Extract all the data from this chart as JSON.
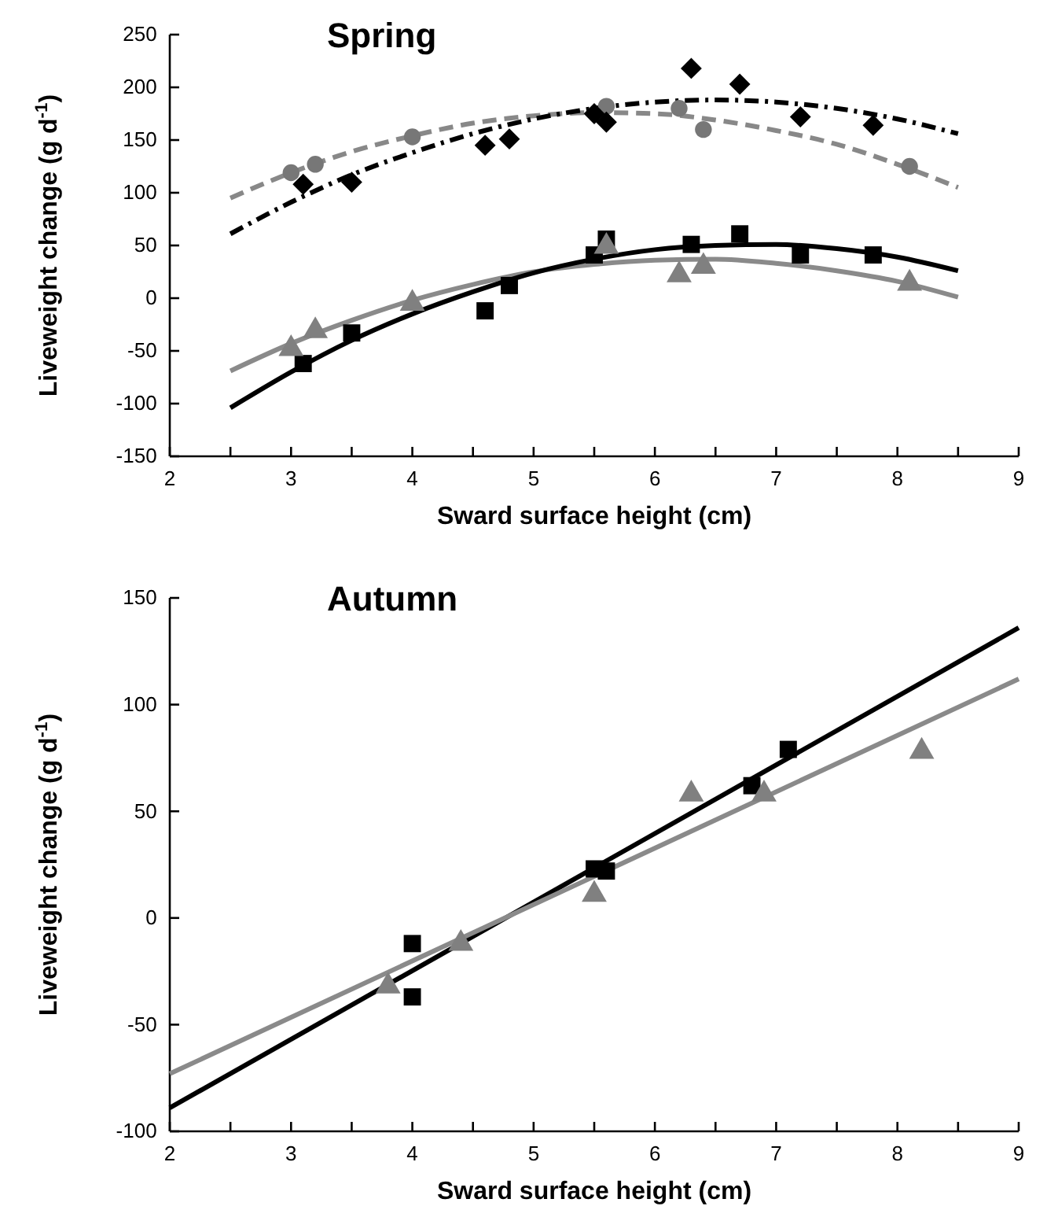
{
  "chart_data": [
    {
      "type": "scatter",
      "title": "Spring",
      "xlabel": "Sward surface height (cm)",
      "ylabel": "Liveweight change (g d$^{-1}$)",
      "xlim": [
        2,
        9
      ],
      "ylim": [
        -150,
        250
      ],
      "xticks": [
        2,
        {
          "value": 2.5,
          "label": null
        },
        3,
        {
          "value": 3.5,
          "label": null
        },
        4,
        {
          "value": 4.5,
          "label": null
        },
        5,
        {
          "value": 5.5,
          "label": null
        },
        6,
        {
          "value": 6.5,
          "label": null
        },
        7,
        {
          "value": 7.5,
          "label": null
        },
        8,
        {
          "value": 8.5,
          "label": null
        },
        9
      ],
      "yticks": [
        -150,
        -100,
        -50,
        0,
        50,
        100,
        150,
        200,
        250
      ],
      "series": [
        {
          "type": "line",
          "color": "#888888",
          "marker": "none",
          "line_style": "dashed",
          "x": [
            2.5,
            3,
            3.5,
            4,
            4.5,
            5,
            5.5,
            6,
            6.5,
            7,
            7.5,
            8,
            8.5
          ],
          "values": [
            95,
            119,
            139,
            154,
            166,
            173,
            176,
            175,
            169,
            159,
            146,
            127,
            105
          ]
        },
        {
          "type": "line",
          "color": "#000000",
          "marker": "none",
          "line_style": "dashdot",
          "x": [
            2.5,
            3,
            3.5,
            4,
            4.5,
            5,
            5.5,
            6,
            6.5,
            7,
            7.5,
            8,
            8.5
          ],
          "values": [
            61,
            91,
            117,
            138,
            156,
            170,
            180,
            186,
            188,
            186,
            180,
            170,
            156
          ]
        },
        {
          "type": "line",
          "color": "#8a8a8a",
          "marker": "none",
          "line_style": "solid",
          "x": [
            2.5,
            3,
            3.5,
            4,
            4.5,
            5,
            5.5,
            6,
            6.5,
            7,
            7.5,
            8,
            8.5
          ],
          "values": [
            -69,
            -43,
            -21,
            -2,
            13,
            25,
            32,
            36,
            37,
            33,
            26,
            16,
            1
          ]
        },
        {
          "type": "line",
          "color": "#000000",
          "marker": "none",
          "line_style": "solid",
          "x": [
            2.5,
            3,
            3.5,
            4,
            4.5,
            5,
            5.5,
            6,
            6.5,
            7,
            7.5,
            8,
            8.5
          ],
          "values": [
            -104,
            -70,
            -40,
            -15,
            6,
            24,
            37,
            46,
            50,
            51,
            47,
            39,
            26
          ]
        },
        {
          "type": "scatter",
          "color": "#777777",
          "marker": "circle",
          "x": [
            3.0,
            3.2,
            4.0,
            5.6,
            6.2,
            6.4,
            8.1
          ],
          "values": [
            119,
            127,
            153,
            182,
            180,
            160,
            125
          ]
        },
        {
          "type": "scatter",
          "color": "#000000",
          "marker": "diamond",
          "x": [
            3.1,
            3.5,
            4.6,
            4.8,
            5.5,
            5.6,
            6.3,
            6.7,
            7.2,
            7.8
          ],
          "values": [
            108,
            110,
            145,
            151,
            175,
            167,
            218,
            203,
            172,
            164
          ]
        },
        {
          "type": "scatter",
          "color": "#000000",
          "marker": "square",
          "x": [
            3.1,
            3.5,
            4.6,
            4.8,
            5.5,
            5.6,
            6.3,
            6.7,
            7.2,
            7.8
          ],
          "values": [
            -62,
            -33,
            -12,
            12,
            41,
            56,
            51,
            61,
            41,
            41
          ]
        },
        {
          "type": "scatter",
          "color": "#808080",
          "marker": "triangle",
          "x": [
            3.0,
            3.2,
            4.0,
            5.6,
            6.2,
            6.4,
            8.1
          ],
          "values": [
            -48,
            -31,
            -5,
            49,
            22,
            30,
            14
          ]
        }
      ]
    },
    {
      "type": "scatter",
      "title": "Autumn",
      "xlabel": "Sward surface height (cm)",
      "ylabel": "Liveweight change (g d$^{-1}$)",
      "xlim": [
        2,
        9
      ],
      "ylim": [
        -100,
        150
      ],
      "xticks": [
        2,
        {
          "value": 2.5,
          "label": null
        },
        3,
        {
          "value": 3.5,
          "label": null
        },
        4,
        {
          "value": 4.5,
          "label": null
        },
        5,
        {
          "value": 5.5,
          "label": null
        },
        6,
        {
          "value": 6.5,
          "label": null
        },
        7,
        {
          "value": 7.5,
          "label": null
        },
        8,
        {
          "value": 8.5,
          "label": null
        },
        9
      ],
      "yticks": [
        -100,
        -50,
        0,
        50,
        100,
        150
      ],
      "series": [
        {
          "type": "line",
          "color": "#000000",
          "marker": "none",
          "line_style": "solid",
          "x": [
            2,
            9
          ],
          "values": [
            -89,
            136
          ]
        },
        {
          "type": "line",
          "color": "#8a8a8a",
          "marker": "none",
          "line_style": "solid",
          "x": [
            2,
            9
          ],
          "values": [
            -73,
            112
          ]
        },
        {
          "type": "scatter",
          "color": "#000000",
          "marker": "square",
          "x": [
            4.0,
            4.0,
            5.5,
            5.6,
            6.8,
            7.1
          ],
          "values": [
            -12,
            -37,
            23,
            22,
            62,
            79
          ]
        },
        {
          "type": "scatter",
          "color": "#808080",
          "marker": "triangle",
          "x": [
            3.8,
            4.4,
            5.5,
            6.3,
            6.9,
            8.2
          ],
          "values": [
            -32,
            -12,
            11,
            58,
            58,
            78
          ]
        }
      ]
    }
  ]
}
